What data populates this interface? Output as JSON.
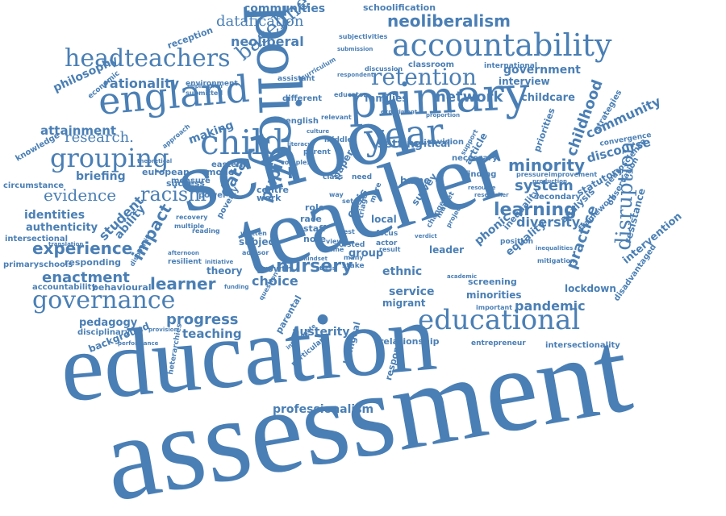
{
  "accent_color": "#4a7fb5",
  "words": {
    "assessment": "assessment",
    "education": "education",
    "teacher": "teacher",
    "school": "school",
    "policy": "policy",
    "primary": "primary",
    "england": "england",
    "accountability": "accountability",
    "headteachers": "headteachers",
    "year": "year",
    "child": "child",
    "grouping": "grouping",
    "educational": "educational",
    "retention": "retention",
    "governance": "governance",
    "disruption": "disruption",
    "racism": "racism",
    "evidence": "evidence",
    "research": "research.",
    "baseline": "baseline",
    "neoliberalism": "neoliberalism",
    "datafication": "datafication",
    "neoliberal": "neoliberal",
    "communities": "communities",
    "schoolification": "schoolification",
    "rationality": "rationality",
    "network": "network",
    "learning": "learning",
    "minority": "minority",
    "system": "system",
    "diversity": "diversity",
    "experience": "experience",
    "nursery": "nursery",
    "learner": "learner",
    "enactment": "enactment",
    "progress": "progress",
    "teaching": "teaching",
    "pandemic": "pandemic",
    "professionalism": "professionalism",
    "childhood": "childhood",
    "practice": "practice",
    "impact": "impact",
    "data": "data",
    "student": "student",
    "identities": "identities",
    "attainment": "attainment",
    "briefing": "briefing",
    "philosophy": "philosophy",
    "community": "community",
    "discourse": "discourse",
    "government": "government",
    "interview": "interview",
    "childcare": "childcare",
    "families": "families",
    "setting": "setting",
    "critical": "critical",
    "pupil": "pupil",
    "choice": "choice",
    "austerity": "austerity",
    "service": "service",
    "ethnic": "ethnic",
    "lockdown": "lockdown",
    "pedagogy": "pedagogy",
    "background": "background",
    "intersectionality": "intersectionality",
    "intervention": "intervention",
    "resistance": "resistance",
    "making": "making",
    "authenticity": "authenticity",
    "ability": "ability",
    "behavioural": "behavioural",
    "accountability_small": "accountability",
    "responding": "responding",
    "primaryschools": "primaryschools",
    "reception": "reception",
    "european": "european",
    "success": "success",
    "model": "model",
    "eastern": "eastern",
    "theory": "theory",
    "growth": "growth",
    "subject": "subject",
    "centre": "centre",
    "work": "work",
    "group": "group",
    "leader": "leader",
    "article": "article",
    "bame": "bame",
    "screening": "screening",
    "minorities": "minorities",
    "phonic": "phonic",
    "inequality": "inequality",
    "equality": "equality",
    "analysis": "analysis",
    "framework": "framework",
    "statutory": "statutory",
    "strategies": "strategies",
    "convergence": "convergence",
    "observation": "observation",
    "neuroscience": "neuroscience",
    "disadvantaged": "disadvantaged",
    "classroom": "classroom",
    "different": "different",
    "environment": "environment",
    "english": "english",
    "survey": "survey",
    "local": "local",
    "crisis": "crisis",
    "role": "role",
    "race": "race",
    "staff": "staff",
    "note": "note",
    "parental": "parental",
    "bilingual": "bilingual",
    "relationship": "relationship",
    "response": "response",
    "migrant": "migrant",
    "circumstance": "circumstance",
    "knowledge": "knowledge",
    "intersectional": "intersectional",
    "disciplinary": "disciplinary",
    "economic": "economic",
    "international": "international",
    "secondary": "secondary",
    "entrepreneur": "entrepreneur",
    "paper": "paper",
    "revision": "revision",
    "necessary": "necessary",
    "priorities": "priorities",
    "finding": "finding",
    "heterarchies": "heterarchies",
    "measure": "measure",
    "power": "power",
    "poverty": "poverty",
    "resilient": "resilient",
    "particular": "particular",
    "educator": "educator",
    "submitted": "submitted",
    "subjectivities": "subjectivities",
    "submission": "submission",
    "implication": "implication",
    "assistant": "assistant",
    "discussion": "discussion",
    "middle": "middle",
    "class": "class",
    "need": "need",
    "ofsted": "ofsted",
    "market": "market",
    "change": "change",
    "project": "project",
    "support": "support",
    "translation": "translation",
    "provision": "provision",
    "multiple": "multiple",
    "reading": "reading",
    "question": "question",
    "stake": "stake",
    "focus": "focus",
    "actor": "actor",
    "test": "test",
    "mitigation": "mitigation",
    "position": "position",
    "important": "important",
    "pressure": "pressure",
    "improvement": "improvement",
    "inequalities": "inequalities",
    "curriculum": "curriculum",
    "respondent": "respondent",
    "relevant": "relevant",
    "parent": "parent",
    "approach": "approach",
    "theoretical": "theoretical",
    "dispositif": "dispositif",
    "advisor": "advisor",
    "afternoon": "afternoon",
    "initiative": "initiative",
    "written": "written",
    "many": "many",
    "way": "way",
    "set": "set",
    "view": "view",
    "time": "time",
    "verdict": "verdict",
    "triage": "triage",
    "more": "more",
    "result": "result",
    "production": "production",
    "interrogate": "interrogate",
    "recovery": "recovery",
    "mindset": "mindset",
    "complex": "complex",
    "funding": "funding",
    "experiment": "experiment",
    "proportion": "proportion",
    "resource": "resource",
    "researcher": "researcher",
    "stress": "stress",
    "academic": "academic",
    "culture": "culture",
    "literacy": "literacy",
    "performance": "performance"
  }
}
